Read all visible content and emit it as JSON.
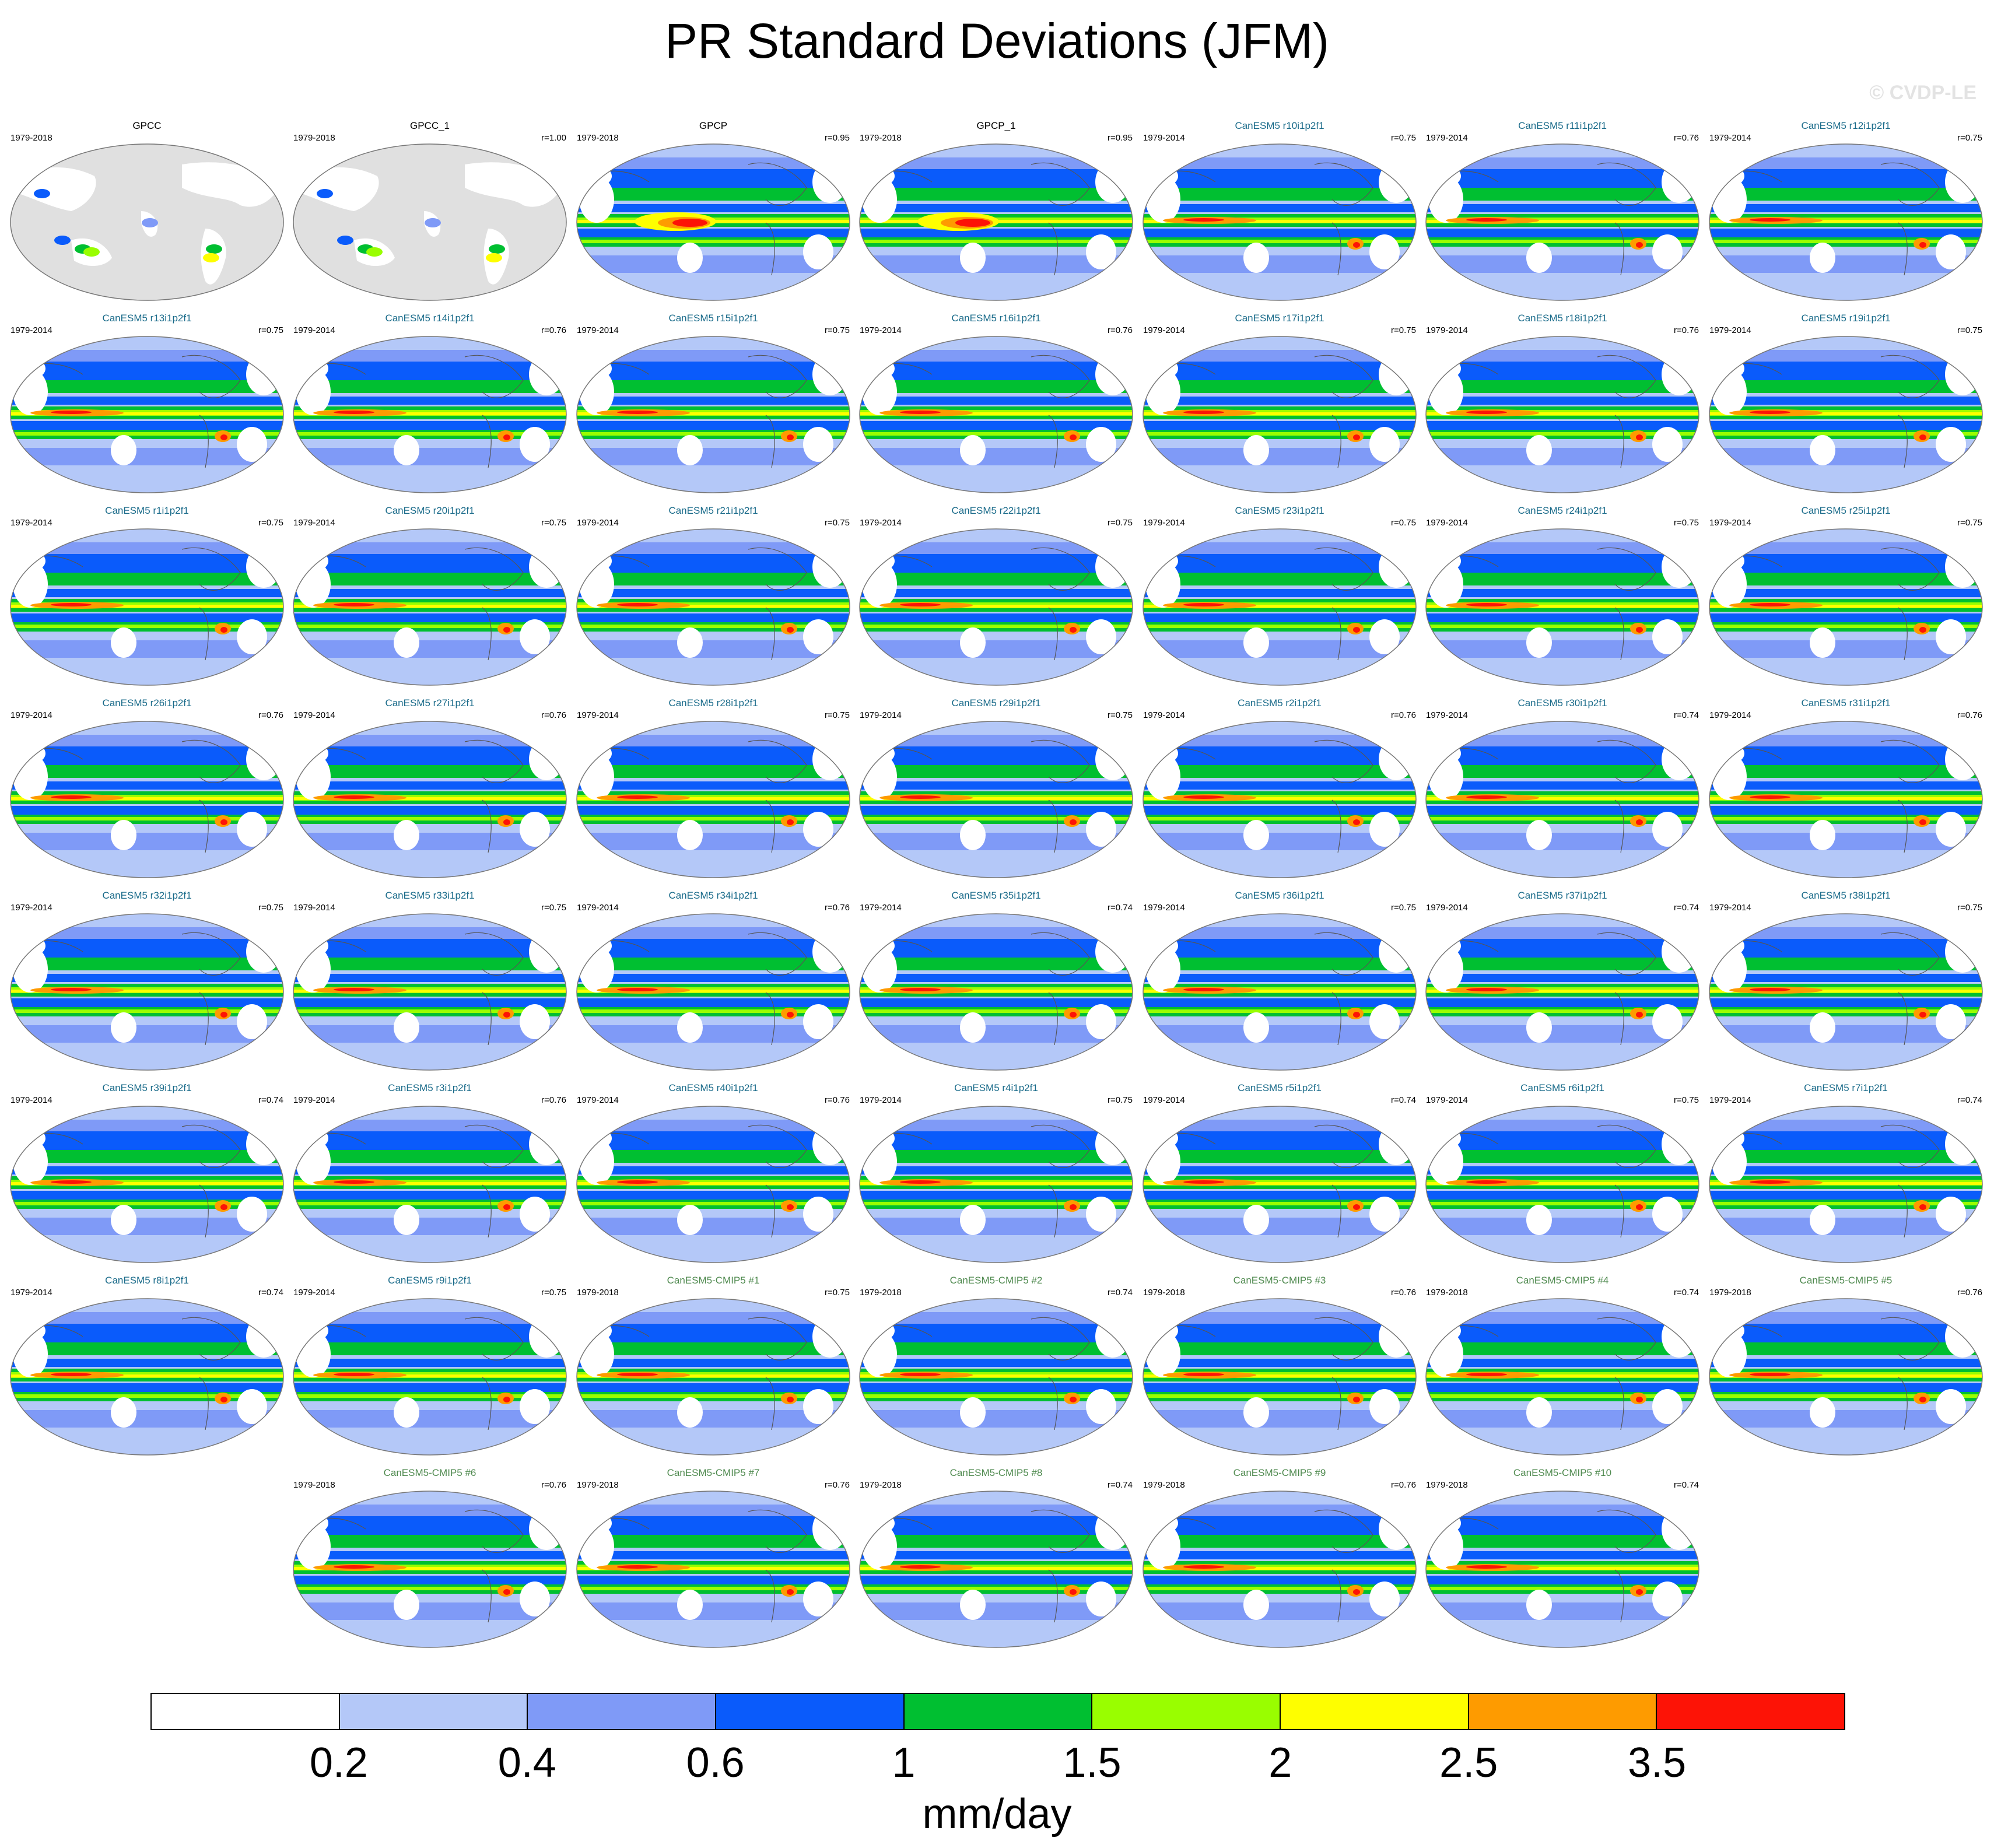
{
  "title": "PR Standard Deviations (JFM)",
  "watermark": "© CVDP-LE",
  "colors": {
    "obs_name": "#000000",
    "member_name": "#1a6b8a",
    "cmip5_name": "#4f8a4f",
    "land_gray": "#e0e0e0"
  },
  "panels": [
    {
      "name": "GPCC",
      "years": "1979-2018",
      "r": "",
      "kind": "obs",
      "map": "land"
    },
    {
      "name": "GPCC_1",
      "years": "1979-2018",
      "r": "r=1.00",
      "kind": "obs",
      "map": "land"
    },
    {
      "name": "GPCP",
      "years": "1979-2018",
      "r": "r=0.95",
      "kind": "obs",
      "map": "obs"
    },
    {
      "name": "GPCP_1",
      "years": "1979-2018",
      "r": "r=0.95",
      "kind": "obs",
      "map": "obs"
    },
    {
      "name": "CanESM5 r10i1p2f1",
      "years": "1979-2014",
      "r": "r=0.75",
      "kind": "member",
      "map": "model"
    },
    {
      "name": "CanESM5 r11i1p2f1",
      "years": "1979-2014",
      "r": "r=0.76",
      "kind": "member",
      "map": "model"
    },
    {
      "name": "CanESM5 r12i1p2f1",
      "years": "1979-2014",
      "r": "r=0.75",
      "kind": "member",
      "map": "model"
    },
    {
      "name": "CanESM5 r13i1p2f1",
      "years": "1979-2014",
      "r": "r=0.75",
      "kind": "member",
      "map": "model"
    },
    {
      "name": "CanESM5 r14i1p2f1",
      "years": "1979-2014",
      "r": "r=0.76",
      "kind": "member",
      "map": "model"
    },
    {
      "name": "CanESM5 r15i1p2f1",
      "years": "1979-2014",
      "r": "r=0.75",
      "kind": "member",
      "map": "model"
    },
    {
      "name": "CanESM5 r16i1p2f1",
      "years": "1979-2014",
      "r": "r=0.76",
      "kind": "member",
      "map": "model"
    },
    {
      "name": "CanESM5 r17i1p2f1",
      "years": "1979-2014",
      "r": "r=0.75",
      "kind": "member",
      "map": "model"
    },
    {
      "name": "CanESM5 r18i1p2f1",
      "years": "1979-2014",
      "r": "r=0.76",
      "kind": "member",
      "map": "model"
    },
    {
      "name": "CanESM5 r19i1p2f1",
      "years": "1979-2014",
      "r": "r=0.75",
      "kind": "member",
      "map": "model"
    },
    {
      "name": "CanESM5 r1i1p2f1",
      "years": "1979-2014",
      "r": "r=0.75",
      "kind": "member",
      "map": "model"
    },
    {
      "name": "CanESM5 r20i1p2f1",
      "years": "1979-2014",
      "r": "r=0.75",
      "kind": "member",
      "map": "model"
    },
    {
      "name": "CanESM5 r21i1p2f1",
      "years": "1979-2014",
      "r": "r=0.75",
      "kind": "member",
      "map": "model"
    },
    {
      "name": "CanESM5 r22i1p2f1",
      "years": "1979-2014",
      "r": "r=0.75",
      "kind": "member",
      "map": "model"
    },
    {
      "name": "CanESM5 r23i1p2f1",
      "years": "1979-2014",
      "r": "r=0.75",
      "kind": "member",
      "map": "model"
    },
    {
      "name": "CanESM5 r24i1p2f1",
      "years": "1979-2014",
      "r": "r=0.75",
      "kind": "member",
      "map": "model"
    },
    {
      "name": "CanESM5 r25i1p2f1",
      "years": "1979-2014",
      "r": "r=0.75",
      "kind": "member",
      "map": "model"
    },
    {
      "name": "CanESM5 r26i1p2f1",
      "years": "1979-2014",
      "r": "r=0.76",
      "kind": "member",
      "map": "model"
    },
    {
      "name": "CanESM5 r27i1p2f1",
      "years": "1979-2014",
      "r": "r=0.76",
      "kind": "member",
      "map": "model"
    },
    {
      "name": "CanESM5 r28i1p2f1",
      "years": "1979-2014",
      "r": "r=0.75",
      "kind": "member",
      "map": "model"
    },
    {
      "name": "CanESM5 r29i1p2f1",
      "years": "1979-2014",
      "r": "r=0.75",
      "kind": "member",
      "map": "model"
    },
    {
      "name": "CanESM5 r2i1p2f1",
      "years": "1979-2014",
      "r": "r=0.76",
      "kind": "member",
      "map": "model"
    },
    {
      "name": "CanESM5 r30i1p2f1",
      "years": "1979-2014",
      "r": "r=0.74",
      "kind": "member",
      "map": "model"
    },
    {
      "name": "CanESM5 r31i1p2f1",
      "years": "1979-2014",
      "r": "r=0.76",
      "kind": "member",
      "map": "model"
    },
    {
      "name": "CanESM5 r32i1p2f1",
      "years": "1979-2014",
      "r": "r=0.75",
      "kind": "member",
      "map": "model"
    },
    {
      "name": "CanESM5 r33i1p2f1",
      "years": "1979-2014",
      "r": "r=0.75",
      "kind": "member",
      "map": "model"
    },
    {
      "name": "CanESM5 r34i1p2f1",
      "years": "1979-2014",
      "r": "r=0.76",
      "kind": "member",
      "map": "model"
    },
    {
      "name": "CanESM5 r35i1p2f1",
      "years": "1979-2014",
      "r": "r=0.74",
      "kind": "member",
      "map": "model"
    },
    {
      "name": "CanESM5 r36i1p2f1",
      "years": "1979-2014",
      "r": "r=0.75",
      "kind": "member",
      "map": "model"
    },
    {
      "name": "CanESM5 r37i1p2f1",
      "years": "1979-2014",
      "r": "r=0.74",
      "kind": "member",
      "map": "model"
    },
    {
      "name": "CanESM5 r38i1p2f1",
      "years": "1979-2014",
      "r": "r=0.75",
      "kind": "member",
      "map": "model"
    },
    {
      "name": "CanESM5 r39i1p2f1",
      "years": "1979-2014",
      "r": "r=0.74",
      "kind": "member",
      "map": "model"
    },
    {
      "name": "CanESM5 r3i1p2f1",
      "years": "1979-2014",
      "r": "r=0.76",
      "kind": "member",
      "map": "model"
    },
    {
      "name": "CanESM5 r40i1p2f1",
      "years": "1979-2014",
      "r": "r=0.76",
      "kind": "member",
      "map": "model"
    },
    {
      "name": "CanESM5 r4i1p2f1",
      "years": "1979-2014",
      "r": "r=0.75",
      "kind": "member",
      "map": "model"
    },
    {
      "name": "CanESM5 r5i1p2f1",
      "years": "1979-2014",
      "r": "r=0.74",
      "kind": "member",
      "map": "model"
    },
    {
      "name": "CanESM5 r6i1p2f1",
      "years": "1979-2014",
      "r": "r=0.75",
      "kind": "member",
      "map": "model"
    },
    {
      "name": "CanESM5 r7i1p2f1",
      "years": "1979-2014",
      "r": "r=0.74",
      "kind": "member",
      "map": "model"
    },
    {
      "name": "CanESM5 r8i1p2f1",
      "years": "1979-2014",
      "r": "r=0.74",
      "kind": "member",
      "map": "model"
    },
    {
      "name": "CanESM5 r9i1p2f1",
      "years": "1979-2014",
      "r": "r=0.75",
      "kind": "member",
      "map": "model"
    },
    {
      "name": "CanESM5-CMIP5 #1",
      "years": "1979-2018",
      "r": "r=0.75",
      "kind": "cmip5",
      "map": "model"
    },
    {
      "name": "CanESM5-CMIP5 #2",
      "years": "1979-2018",
      "r": "r=0.74",
      "kind": "cmip5",
      "map": "model"
    },
    {
      "name": "CanESM5-CMIP5 #3",
      "years": "1979-2018",
      "r": "r=0.76",
      "kind": "cmip5",
      "map": "model"
    },
    {
      "name": "CanESM5-CMIP5 #4",
      "years": "1979-2018",
      "r": "r=0.74",
      "kind": "cmip5",
      "map": "model"
    },
    {
      "name": "CanESM5-CMIP5 #5",
      "years": "1979-2018",
      "r": "r=0.76",
      "kind": "cmip5",
      "map": "model"
    },
    {
      "name": "CanESM5-CMIP5 #6",
      "years": "1979-2018",
      "r": "r=0.76",
      "kind": "cmip5",
      "map": "model"
    },
    {
      "name": "CanESM5-CMIP5 #7",
      "years": "1979-2018",
      "r": "r=0.76",
      "kind": "cmip5",
      "map": "model"
    },
    {
      "name": "CanESM5-CMIP5 #8",
      "years": "1979-2018",
      "r": "r=0.74",
      "kind": "cmip5",
      "map": "model"
    },
    {
      "name": "CanESM5-CMIP5 #9",
      "years": "1979-2018",
      "r": "r=0.76",
      "kind": "cmip5",
      "map": "model"
    },
    {
      "name": "CanESM5-CMIP5 #10",
      "years": "1979-2018",
      "r": "r=0.74",
      "kind": "cmip5",
      "map": "model"
    }
  ],
  "colorbar": {
    "colors": [
      "#ffffff",
      "#b4c8f8",
      "#7f9af7",
      "#0a5bfb",
      "#00bf31",
      "#99fe00",
      "#fefe00",
      "#fe9b00",
      "#fd1306"
    ],
    "labels": [
      "0.2",
      "0.4",
      "0.6",
      "1",
      "1.5",
      "2",
      "2.5",
      "3.5"
    ],
    "units": "mm/day"
  }
}
